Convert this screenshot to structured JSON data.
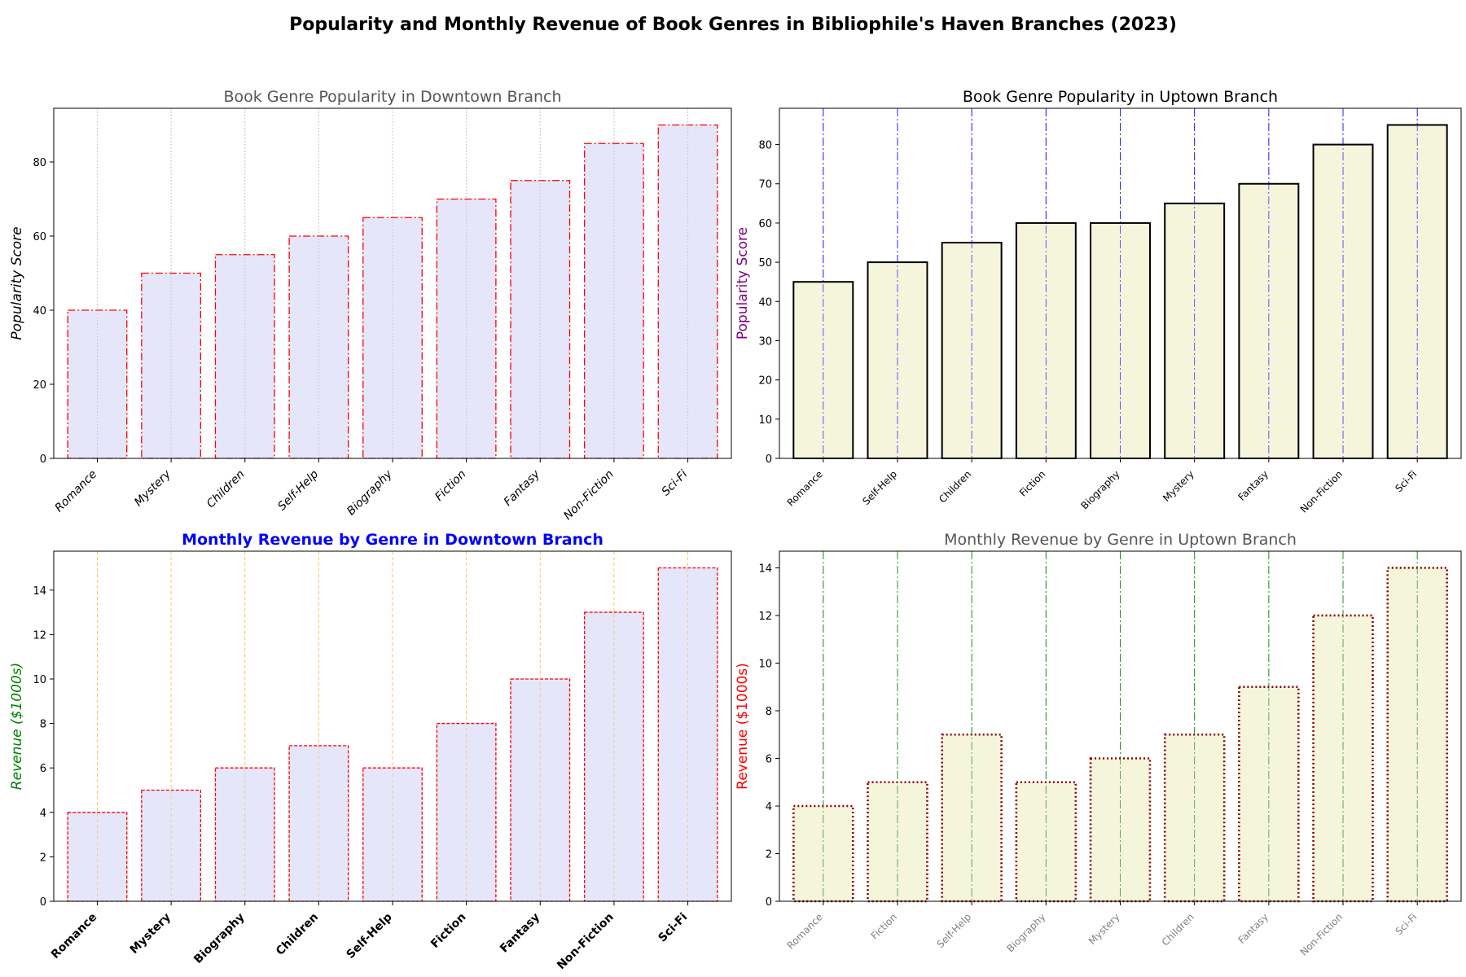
{
  "suptitle": "Popularity and Monthly Revenue of Book Genres in Bibliophile's Haven Branches (2023)",
  "chart_data": [
    {
      "type": "bar",
      "title": "Book Genre Popularity in Downtown Branch",
      "xlabel": "",
      "ylabel": "Popularity Score",
      "categories": [
        "Romance",
        "Mystery",
        "Children",
        "Self-Help",
        "Biography",
        "Fiction",
        "Fantasy",
        "Non-Fiction",
        "Sci-Fi"
      ],
      "values": [
        40,
        50,
        55,
        60,
        65,
        70,
        75,
        85,
        90
      ],
      "ylim": [
        0,
        94.5
      ],
      "yticks": [
        0,
        20,
        40,
        60,
        80
      ],
      "grid": "vertical-dotted",
      "colors": {
        "bar_fill": "#e6e6fa",
        "bar_edge": "#ff0000",
        "grid": "#b0b0b0",
        "title": "#555555",
        "ylabel": "#000000",
        "ticklabel": "#000000"
      }
    },
    {
      "type": "bar",
      "title": "Book Genre Popularity in Uptown Branch",
      "xlabel": "",
      "ylabel": "Popularity Score",
      "categories": [
        "Romance",
        "Self-Help",
        "Children",
        "Fiction",
        "Biography",
        "Mystery",
        "Fantasy",
        "Non-Fiction",
        "Sci-Fi"
      ],
      "values": [
        45,
        50,
        55,
        60,
        60,
        65,
        70,
        80,
        85
      ],
      "ylim": [
        0,
        89.25
      ],
      "yticks": [
        0,
        10,
        20,
        30,
        40,
        50,
        60,
        70,
        80
      ],
      "grid": "vertical-dashdot",
      "colors": {
        "bar_fill": "#f5f5dc",
        "bar_edge": "#000000",
        "grid": "#0000ff",
        "title": "#000000",
        "ylabel": "#800080",
        "ticklabel": "#000000"
      }
    },
    {
      "type": "bar",
      "title": "Monthly Revenue by Genre in Downtown Branch",
      "xlabel": "",
      "ylabel": "Revenue ($1000s)",
      "categories": [
        "Romance",
        "Mystery",
        "Biography",
        "Children",
        "Self-Help",
        "Fiction",
        "Fantasy",
        "Non-Fiction",
        "Sci-Fi"
      ],
      "values": [
        4,
        5,
        6,
        7,
        6,
        8,
        10,
        13,
        15
      ],
      "ylim": [
        0,
        15.75
      ],
      "yticks": [
        0,
        2,
        4,
        6,
        8,
        10,
        12,
        14
      ],
      "grid": "vertical-dashed",
      "colors": {
        "bar_fill": "#e6e6fa",
        "bar_edge": "#ff0000",
        "grid": "#ffa500",
        "title": "#0000ff",
        "ylabel": "#008000",
        "ticklabel": "#000000"
      }
    },
    {
      "type": "bar",
      "title": "Monthly Revenue by Genre in Uptown Branch",
      "xlabel": "",
      "ylabel": "Revenue ($1000s)",
      "categories": [
        "Romance",
        "Fiction",
        "Self-Help",
        "Biography",
        "Mystery",
        "Children",
        "Fantasy",
        "Non-Fiction",
        "Sci-Fi"
      ],
      "values": [
        4,
        5,
        7,
        5,
        6,
        7,
        9,
        12,
        14
      ],
      "ylim": [
        0,
        14.7
      ],
      "yticks": [
        0,
        2,
        4,
        6,
        8,
        10,
        12,
        14
      ],
      "grid": "vertical-dashdot",
      "colors": {
        "bar_fill": "#f5f5dc",
        "bar_edge": "#8b0000",
        "grid": "#008000",
        "title": "#555555",
        "ylabel": "#ff0000",
        "ticklabel": "#808080"
      }
    }
  ]
}
